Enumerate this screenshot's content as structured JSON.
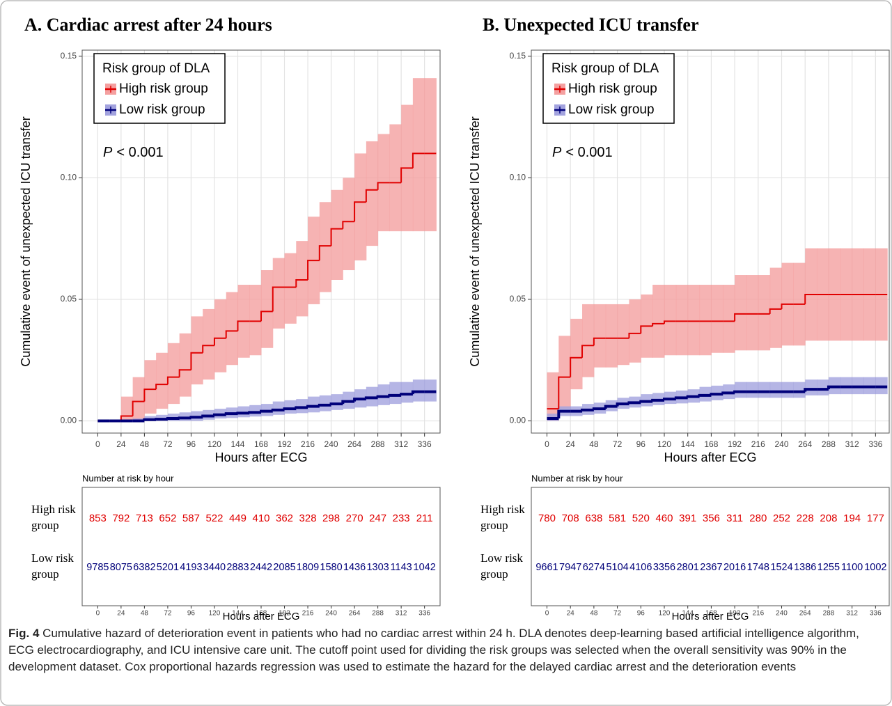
{
  "chart_data": [
    {
      "type": "line",
      "title": "A. Cardiac arrest after 24 hours",
      "ylabel": "Cumulative event of unexpected ICU transfer",
      "xlabel": "Hours after ECG",
      "legend_title": "Risk group of DLA",
      "annotation": {
        "italic": "P",
        "text": "< 0.001"
      },
      "xlim": [
        -16,
        352
      ],
      "ylim": [
        -0.005,
        0.1525
      ],
      "xticks": [
        0,
        24,
        48,
        72,
        96,
        120,
        144,
        168,
        192,
        216,
        240,
        264,
        288,
        312,
        336
      ],
      "yticks": [
        {
          "value": 0,
          "label": "0.00"
        },
        {
          "value": 0.05,
          "label": "0.05"
        },
        {
          "value": 0.1,
          "label": "0.10"
        },
        {
          "value": 0.15,
          "label": "0.15"
        }
      ],
      "grid": true,
      "x": [
        0,
        12,
        24,
        36,
        48,
        60,
        72,
        84,
        96,
        108,
        120,
        132,
        144,
        156,
        168,
        180,
        192,
        204,
        216,
        228,
        240,
        252,
        264,
        276,
        288,
        300,
        312,
        324,
        336,
        348
      ],
      "series": [
        {
          "name": "High risk group",
          "color": "#e00000",
          "band_color": "#f4a0a0",
          "values": [
            0,
            0,
            0.002,
            0.008,
            0.013,
            0.015,
            0.018,
            0.021,
            0.028,
            0.031,
            0.034,
            0.037,
            0.041,
            0.041,
            0.045,
            0.055,
            0.055,
            0.058,
            0.066,
            0.072,
            0.079,
            0.082,
            0.09,
            0.095,
            0.098,
            0.098,
            0.104,
            0.11,
            0.11,
            0.11
          ],
          "upper": [
            0,
            0,
            0.01,
            0.018,
            0.025,
            0.028,
            0.032,
            0.036,
            0.043,
            0.046,
            0.05,
            0.053,
            0.056,
            0.056,
            0.062,
            0.067,
            0.069,
            0.074,
            0.084,
            0.09,
            0.095,
            0.1,
            0.11,
            0.115,
            0.118,
            0.122,
            0.13,
            0.141,
            0.141,
            0.141
          ],
          "lower": [
            0,
            0,
            0,
            0,
            0.003,
            0.005,
            0.007,
            0.01,
            0.015,
            0.017,
            0.02,
            0.023,
            0.026,
            0.027,
            0.03,
            0.038,
            0.04,
            0.043,
            0.048,
            0.053,
            0.058,
            0.062,
            0.066,
            0.072,
            0.078,
            0.078,
            0.078,
            0.078,
            0.078,
            0.078
          ]
        },
        {
          "name": "Low risk group",
          "color": "#00007a",
          "band_color": "#a3a3de",
          "values": [
            0,
            0,
            0,
            0,
            0.0005,
            0.0007,
            0.001,
            0.0012,
            0.0015,
            0.002,
            0.0025,
            0.003,
            0.0032,
            0.0035,
            0.004,
            0.0045,
            0.005,
            0.0055,
            0.006,
            0.0065,
            0.007,
            0.008,
            0.009,
            0.0095,
            0.01,
            0.0105,
            0.011,
            0.012,
            0.012,
            0.012
          ],
          "upper": [
            0,
            0,
            0,
            0.001,
            0.002,
            0.0025,
            0.003,
            0.0035,
            0.004,
            0.0045,
            0.005,
            0.0055,
            0.006,
            0.0065,
            0.007,
            0.008,
            0.0085,
            0.009,
            0.01,
            0.0105,
            0.011,
            0.012,
            0.013,
            0.014,
            0.015,
            0.016,
            0.016,
            0.017,
            0.017,
            0.017
          ],
          "lower": [
            0,
            0,
            0,
            0,
            0,
            0,
            0,
            0,
            0,
            0.0005,
            0.001,
            0.0012,
            0.0015,
            0.0018,
            0.002,
            0.0025,
            0.003,
            0.0032,
            0.0035,
            0.004,
            0.0045,
            0.005,
            0.0055,
            0.006,
            0.0065,
            0.007,
            0.0075,
            0.008,
            0.008,
            0.008
          ]
        }
      ],
      "risk_table": {
        "title": "Number at risk by hour",
        "xlabel": "Hours after ECG",
        "rows": [
          {
            "label": [
              "High risk",
              "group"
            ],
            "values": [
              853,
              792,
              713,
              652,
              587,
              522,
              449,
              410,
              362,
              328,
              298,
              270,
              247,
              233,
              211
            ]
          },
          {
            "label": [
              "Low risk",
              "group"
            ],
            "values": [
              9785,
              8075,
              6382,
              5201,
              4193,
              3440,
              2883,
              2442,
              2085,
              1809,
              1580,
              1436,
              1303,
              1143,
              1042
            ]
          }
        ]
      }
    },
    {
      "type": "line",
      "title": "B. Unexpected ICU transfer",
      "ylabel": "Cumulative event of unexpected ICU transfer",
      "xlabel": "Hours after ECG",
      "legend_title": "Risk group of DLA",
      "annotation": {
        "italic": "P",
        "text": "< 0.001"
      },
      "xlim": [
        -16,
        350
      ],
      "ylim": [
        -0.005,
        0.1525
      ],
      "xticks": [
        0,
        24,
        48,
        72,
        96,
        120,
        144,
        168,
        192,
        216,
        240,
        264,
        288,
        312,
        336
      ],
      "yticks": [
        {
          "value": 0,
          "label": "0.00"
        },
        {
          "value": 0.05,
          "label": "0.05"
        },
        {
          "value": 0.1,
          "label": "0.10"
        },
        {
          "value": 0.15,
          "label": "0.15"
        }
      ],
      "grid": true,
      "x": [
        0,
        12,
        24,
        36,
        48,
        60,
        72,
        84,
        96,
        108,
        120,
        132,
        144,
        156,
        168,
        180,
        192,
        204,
        216,
        228,
        240,
        252,
        264,
        276,
        288,
        300,
        312,
        324,
        336,
        348
      ],
      "series": [
        {
          "name": "High risk group",
          "color": "#e00000",
          "band_color": "#f4a0a0",
          "values": [
            0.005,
            0.018,
            0.026,
            0.031,
            0.034,
            0.034,
            0.034,
            0.036,
            0.039,
            0.04,
            0.041,
            0.041,
            0.041,
            0.041,
            0.041,
            0.041,
            0.044,
            0.044,
            0.044,
            0.046,
            0.048,
            0.048,
            0.052,
            0.052,
            0.052,
            0.052,
            0.052,
            0.052,
            0.052,
            0.052
          ],
          "upper": [
            0.02,
            0.035,
            0.042,
            0.048,
            0.048,
            0.048,
            0.048,
            0.05,
            0.052,
            0.056,
            0.056,
            0.056,
            0.056,
            0.056,
            0.056,
            0.056,
            0.06,
            0.06,
            0.06,
            0.063,
            0.065,
            0.065,
            0.071,
            0.071,
            0.071,
            0.071,
            0.071,
            0.071,
            0.071,
            0.071
          ],
          "lower": [
            0,
            0.005,
            0.013,
            0.018,
            0.022,
            0.022,
            0.023,
            0.024,
            0.026,
            0.026,
            0.027,
            0.027,
            0.027,
            0.027,
            0.028,
            0.028,
            0.029,
            0.029,
            0.029,
            0.03,
            0.031,
            0.031,
            0.033,
            0.033,
            0.033,
            0.033,
            0.033,
            0.033,
            0.033,
            0.033
          ]
        },
        {
          "name": "Low risk group",
          "color": "#00007a",
          "band_color": "#a3a3de",
          "values": [
            0.001,
            0.004,
            0.004,
            0.0045,
            0.005,
            0.006,
            0.007,
            0.0075,
            0.008,
            0.0085,
            0.009,
            0.0095,
            0.01,
            0.0105,
            0.011,
            0.0115,
            0.012,
            0.012,
            0.012,
            0.012,
            0.012,
            0.012,
            0.013,
            0.013,
            0.014,
            0.014,
            0.014,
            0.014,
            0.014,
            0.014
          ],
          "upper": [
            0.003,
            0.006,
            0.006,
            0.007,
            0.0075,
            0.0085,
            0.0095,
            0.01,
            0.011,
            0.0115,
            0.012,
            0.0125,
            0.013,
            0.014,
            0.0145,
            0.015,
            0.016,
            0.016,
            0.016,
            0.016,
            0.016,
            0.016,
            0.017,
            0.017,
            0.018,
            0.018,
            0.018,
            0.018,
            0.018,
            0.018
          ],
          "lower": [
            0,
            0.002,
            0.002,
            0.0025,
            0.003,
            0.004,
            0.005,
            0.0055,
            0.006,
            0.0065,
            0.007,
            0.0072,
            0.0075,
            0.008,
            0.0085,
            0.009,
            0.0095,
            0.0095,
            0.0095,
            0.0095,
            0.0095,
            0.0095,
            0.0105,
            0.0105,
            0.011,
            0.011,
            0.011,
            0.011,
            0.011,
            0.011
          ]
        }
      ],
      "risk_table": {
        "title": "Number at risk by hour",
        "xlabel": "Hours after ECG",
        "rows": [
          {
            "label": [
              "High risk",
              "group"
            ],
            "values": [
              780,
              708,
              638,
              581,
              520,
              460,
              391,
              356,
              311,
              280,
              252,
              228,
              208,
              194,
              177
            ]
          },
          {
            "label": [
              "Low risk",
              "group"
            ],
            "values": [
              9661,
              7947,
              6274,
              5104,
              4106,
              3356,
              2801,
              2367,
              2016,
              1748,
              1524,
              1386,
              1255,
              1100,
              1002
            ]
          }
        ]
      }
    }
  ],
  "caption": {
    "label": "Fig. 4",
    "text": "Cumulative hazard of deterioration event in patients who had no cardiac arrest within 24 h. DLA denotes deep-learning based artificial intelligence algorithm, ECG electrocardiography, and ICU intensive care unit. The cutoff point used for dividing the risk groups was selected when the overall sensitivity was 90% in the development dataset. Cox proportional hazards regression was used to estimate the hazard for the delayed cardiac arrest and the deterioration events"
  }
}
